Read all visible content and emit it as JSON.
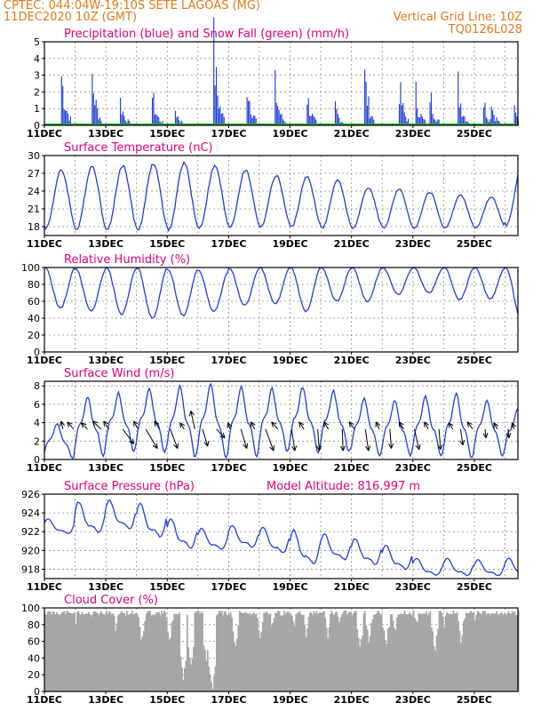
{
  "header": {
    "line1_left": "CPTEC:   044:04W-19:10S   SETE LAGOAS (MG)",
    "line2_left": "11DEC2020 10Z (GMT)",
    "line2_right": "Vertical Grid Line: 10Z",
    "line3_right": "TQ0126L028"
  },
  "colors": {
    "header": "#e07b1a",
    "title": "#e0007a",
    "series": "#1f3fdc",
    "snow": "#22aa22",
    "cloud": "#a6a6a6",
    "grid": "#8c8c8c"
  },
  "x_labels": [
    "11DEC",
    "13DEC",
    "15DEC",
    "17DEC",
    "19DEC",
    "21DEC",
    "23DEC",
    "25DEC"
  ],
  "chart_data": [
    {
      "type": "bar",
      "title": "Precipitation (blue) and Snow Fall (green) (mm/h)",
      "ylim": [
        0,
        5
      ],
      "yticks": [
        "0",
        "1",
        "2",
        "3",
        "4",
        "5"
      ],
      "xlim_days": [
        0,
        15.42
      ],
      "series": [
        {
          "name": "Precipitation",
          "color": "#1f3fdc",
          "peaks": [
            [
              0.55,
              4.3
            ],
            [
              1.55,
              4.1
            ],
            [
              2.5,
              1.6
            ],
            [
              3.55,
              1.9
            ],
            [
              4.3,
              1.0
            ],
            [
              5.55,
              4.8
            ],
            [
              6.6,
              3.8
            ],
            [
              7.55,
              2.4
            ],
            [
              8.55,
              2.5
            ],
            [
              9.5,
              1.2
            ],
            [
              10.45,
              3.4
            ],
            [
              11.55,
              3.3
            ],
            [
              12.1,
              2.5
            ],
            [
              12.55,
              2.8
            ],
            [
              13.5,
              2.7
            ],
            [
              14.3,
              2.0
            ],
            [
              14.55,
              1.8
            ],
            [
              15.3,
              1.2
            ]
          ]
        },
        {
          "name": "Snow Fall",
          "color": "#22aa22",
          "values": [
            0,
            0
          ]
        }
      ]
    },
    {
      "type": "line",
      "title": "Surface Temperature (nC)",
      "ylim": [
        16.5,
        30
      ],
      "yticks": [
        "18",
        "21",
        "24",
        "27",
        "30"
      ],
      "daily_min": [
        17.8,
        17.5,
        17.5,
        17.5,
        17.5,
        17.8,
        18.0,
        18.0,
        18.0,
        17.8,
        17.8,
        17.8,
        17.8,
        17.8,
        17.8,
        18.3
      ],
      "daily_max": [
        27.5,
        28.2,
        28.3,
        28.6,
        28.7,
        28.2,
        27.5,
        26.6,
        26.4,
        25.8,
        24.6,
        24.3,
        23.8,
        23.3,
        23.0,
        28.2
      ]
    },
    {
      "type": "line",
      "title": "Relative Humidity (%)",
      "ylim": [
        0,
        100
      ],
      "yticks": [
        "0",
        "20",
        "40",
        "60",
        "80",
        "100"
      ],
      "daily_min": [
        52,
        48,
        45,
        40,
        43,
        48,
        55,
        57,
        48,
        60,
        60,
        68,
        70,
        62,
        63,
        40
      ],
      "daily_max": [
        100,
        98,
        100,
        100,
        98,
        96,
        99,
        100,
        100,
        100,
        100,
        100,
        100,
        100,
        100,
        100
      ]
    },
    {
      "type": "line",
      "title": "Surface Wind (m/s)",
      "ylim": [
        0,
        8.5
      ],
      "yticks": [
        "0",
        "2",
        "4",
        "6",
        "8"
      ],
      "daily_min": [
        0.5,
        1.0,
        1.5,
        1.5,
        1.0,
        1.0,
        1.0,
        1.5,
        1.5,
        1.5,
        1.0,
        1.0,
        1.0,
        0.8,
        1.0,
        1.0
      ],
      "daily_max": [
        3.5,
        6.2,
        6.6,
        7.0,
        7.2,
        7.5,
        7.2,
        7.0,
        7.2,
        6.8,
        6.0,
        5.8,
        6.2,
        6.5,
        5.8,
        5.0
      ],
      "vectors": [
        [
          0.6,
          -0.2,
          1.0
        ],
        [
          0.95,
          -0.8,
          0.9
        ],
        [
          1.4,
          -0.9,
          0.8
        ],
        [
          1.85,
          -1.0,
          1.0
        ],
        [
          2.1,
          -0.6,
          1.0
        ],
        [
          2.55,
          1.0,
          1.3
        ],
        [
          3.05,
          -0.5,
          1.0
        ],
        [
          3.3,
          0.8,
          1.7
        ],
        [
          3.75,
          -0.6,
          1.0
        ],
        [
          4.1,
          0.5,
          1.7
        ],
        [
          4.55,
          -0.6,
          0.8
        ],
        [
          4.9,
          -0.3,
          1.6
        ],
        [
          5.15,
          0.4,
          1.5
        ],
        [
          5.6,
          0.9,
          1.1
        ],
        [
          6.05,
          -0.3,
          0.8
        ],
        [
          6.4,
          0.4,
          1.7
        ],
        [
          6.85,
          -0.5,
          0.9
        ],
        [
          7.2,
          0.5,
          1.9
        ],
        [
          7.6,
          -0.8,
          0.9
        ],
        [
          8.05,
          0.2,
          1.9
        ],
        [
          8.45,
          -0.6,
          0.9
        ],
        [
          8.9,
          0.1,
          1.9
        ],
        [
          9.25,
          -0.6,
          0.9
        ],
        [
          9.7,
          0.05,
          1.9
        ],
        [
          10.1,
          -0.7,
          0.9
        ],
        [
          10.45,
          0.2,
          1.9
        ],
        [
          10.9,
          -0.4,
          0.9
        ],
        [
          11.25,
          0.1,
          1.7
        ],
        [
          11.7,
          -0.6,
          0.9
        ],
        [
          12.05,
          0.3,
          1.8
        ],
        [
          12.5,
          -0.5,
          0.9
        ],
        [
          12.85,
          0.1,
          1.8
        ],
        [
          13.3,
          -0.6,
          0.8
        ],
        [
          13.55,
          0.2,
          1.4
        ],
        [
          13.95,
          -0.7,
          0.9
        ],
        [
          14.35,
          0.1,
          1.1
        ],
        [
          14.75,
          -0.5,
          0.8
        ],
        [
          15.1,
          0.1,
          1.1
        ],
        [
          15.3,
          -0.3,
          0.8
        ]
      ]
    },
    {
      "type": "line",
      "title": "Surface Pressure (hPa)",
      "annotation": "Model Altitude: 816.997 m",
      "ylim": [
        917,
        926
      ],
      "yticks": [
        "918",
        "920",
        "922",
        "924",
        "926"
      ],
      "daily_min": [
        921.5,
        921.3,
        921.7,
        920.8,
        919.7,
        919.7,
        919.9,
        919.2,
        917.9,
        918.5,
        918.0,
        917.5,
        917.0,
        917.0,
        917.0,
        917.0
      ],
      "daily_max": [
        923.4,
        925.2,
        925.4,
        925.0,
        923.4,
        922.4,
        922.7,
        922.5,
        922.2,
        921.8,
        921.3,
        920.6,
        919.2,
        919.2,
        919.0,
        919.2
      ]
    },
    {
      "type": "bar",
      "title": "Cloud Cover (%)",
      "ylim": [
        0,
        100
      ],
      "yticks": [
        "0",
        "20",
        "40",
        "60",
        "80",
        "100"
      ],
      "base_level": 97,
      "dips": [
        [
          0.5,
          88
        ],
        [
          1.0,
          80
        ],
        [
          1.5,
          85
        ],
        [
          2.3,
          70
        ],
        [
          3.15,
          55
        ],
        [
          4.05,
          55
        ],
        [
          4.5,
          12
        ],
        [
          4.75,
          25
        ],
        [
          5.25,
          30
        ],
        [
          5.45,
          0
        ],
        [
          6.2,
          50
        ],
        [
          7.0,
          60
        ],
        [
          7.4,
          70
        ],
        [
          8.1,
          72
        ],
        [
          8.5,
          65
        ],
        [
          9.2,
          62
        ],
        [
          9.6,
          75
        ],
        [
          10.25,
          45
        ],
        [
          10.55,
          55
        ],
        [
          11.1,
          50
        ],
        [
          11.4,
          65
        ],
        [
          12.1,
          72
        ],
        [
          12.7,
          45
        ],
        [
          13.0,
          75
        ],
        [
          13.55,
          55
        ],
        [
          14.0,
          80
        ],
        [
          14.55,
          85
        ],
        [
          15.1,
          92
        ]
      ]
    }
  ]
}
